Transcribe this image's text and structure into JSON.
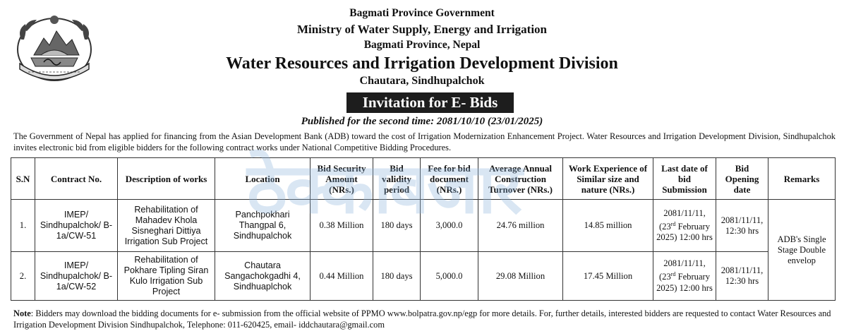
{
  "header": {
    "line1": "Bagmati Province Government",
    "line2": "Ministry of Water Supply, Energy and Irrigation",
    "line3": "Bagmati Province, Nepal",
    "division": "Water Resources and Irrigation Development Division",
    "location": "Chautara, Sindhupalchok",
    "emblem_icon": "nepal-emblem-icon"
  },
  "banner": "Invitation for E- Bids",
  "published": "Published for the second time: 2081/10/10 (23/01/2025)",
  "intro": "The Government of Nepal has applied for financing from the Asian Development Bank (ADB) toward the cost of Irrigation Modernization Enhancement Project. Water Resources and Irrigation Development Division, Sindhupalchok invites electronic bid from eligible bidders for the following contract works under National Competitive Bidding Procedures.",
  "watermark": "ठेक्काबजार",
  "table": {
    "headers": [
      "S.N",
      "Contract No.",
      "Description of works",
      "Location",
      "Bid Security Amount (NRs.)",
      "Bid validity period",
      "Fee for bid document (NRs.)",
      "Average Annual Construction Turnover (NRs.)",
      "Work Experience of Similar size and nature (NRs.)",
      "Last date of bid Submission",
      "Bid Opening date",
      "Remarks"
    ],
    "rows": [
      {
        "sn": "1.",
        "contract": "IMEP/ Sindhupalchok/ B-1a/CW-51",
        "description": "Rehabilitation of Mahadev Khola Sisneghari Dittiya Irrigation Sub Project",
        "location": "Panchpokhari Thangpal 6, Sindhupalchok",
        "security": "0.38 Million",
        "validity": "180 days",
        "fee": "3,000.0",
        "turnover": "24.76 million",
        "experience": "14.85 million",
        "last_date_a": "2081/11/11,",
        "last_date_day": "23",
        "last_date_sup": "rd",
        "last_date_b": "February 2025) 12:00 hrs",
        "opening": "2081/11/11, 12:30 hrs"
      },
      {
        "sn": "2.",
        "contract": "IMEP/ Sindhupalchok/ B-1a/CW-52",
        "description": "Rehabilitation of Pokhare Tipling Siran Kulo Irrigation Sub Project",
        "location": "Chautara Sangachokgadhi 4, Sindhuaplchok",
        "security": "0.44 Million",
        "validity": "180 days",
        "fee": "5,000.0",
        "turnover": "29.08 Million",
        "experience": "17.45 Million",
        "last_date_a": "2081/11/11,",
        "last_date_day": "23",
        "last_date_sup": "rd",
        "last_date_b": "February 2025) 12:00 hrs",
        "opening": "2081/11/11, 12:30 hrs"
      }
    ],
    "remarks": "ADB's Single Stage Double envelop"
  },
  "note": {
    "label": "Note",
    "text": ":  Bidders may download the bidding documents for e- submission from the official website of PPMO www.bolpatra.gov.np/egp for more details. For, further details, interested bidders are requested to contact Water Resources and Irrigation Development Division Sindhupalchok, Telephone: 011-620425, email- iddchautara@gmail.com"
  }
}
